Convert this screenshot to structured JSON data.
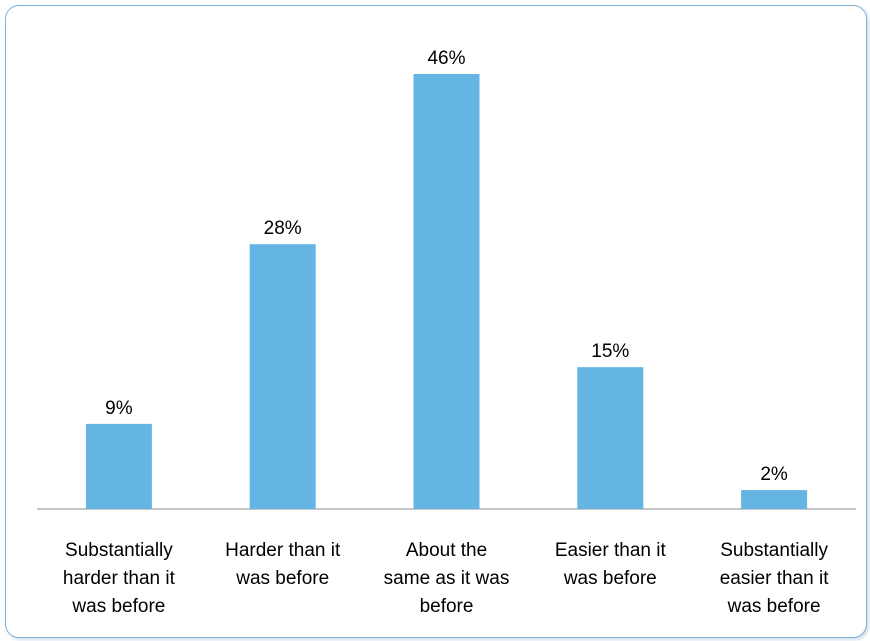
{
  "chart_data": {
    "type": "bar",
    "categories": [
      [
        "Substantially",
        "harder than it",
        "was before"
      ],
      [
        "Harder than it",
        "was before"
      ],
      [
        "About the",
        "same as it was",
        "before"
      ],
      [
        "Easier than it",
        "was before"
      ],
      [
        "Substantially",
        "easier than it",
        "was before"
      ]
    ],
    "values": [
      9,
      28,
      46,
      15,
      2
    ],
    "data_labels": [
      "9%",
      "28%",
      "46%",
      "15%",
      "2%"
    ],
    "title": "",
    "xlabel": "",
    "ylabel": "",
    "ylim": [
      0,
      46
    ],
    "grid": false,
    "legend": "none",
    "colors": {
      "bar": "#65b5e4",
      "axis": "#8c8c8c",
      "frame": "#7fb1d9"
    }
  }
}
